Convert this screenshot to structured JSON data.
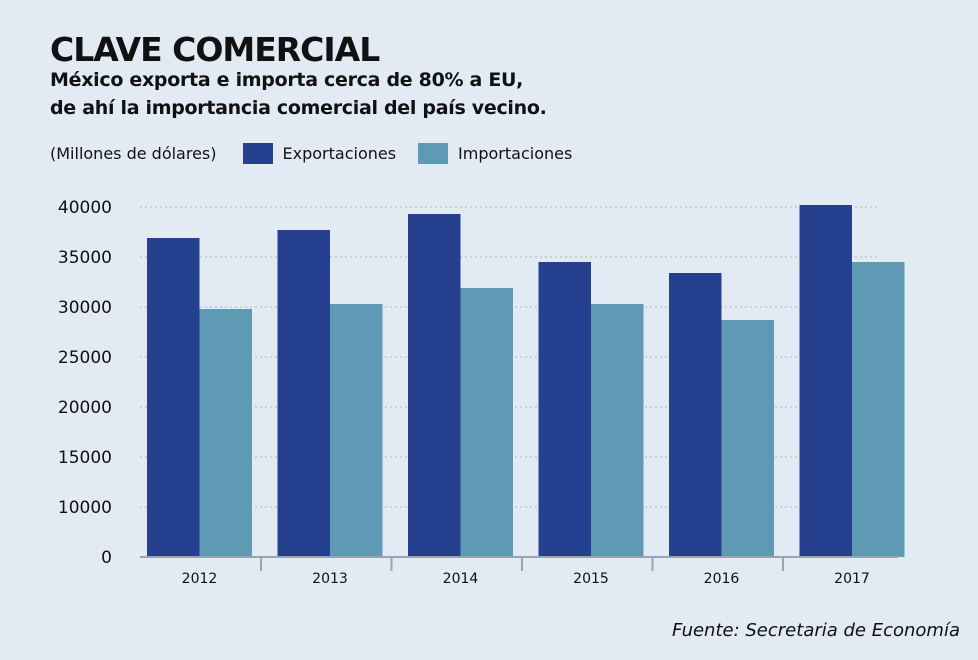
{
  "title": "CLAVE COMERCIAL",
  "subtitle_lines": [
    "México exporta e importa cerca de 80% a EU,",
    "de ahí la importancia comercial del país vecino."
  ],
  "source": "Fuente: Secretaria de Economía",
  "colors": {
    "exports": "#25408f",
    "imports": "#5f9ab5",
    "background": "#e2eaf3"
  },
  "chart_data": {
    "type": "bar",
    "title": "CLAVE COMERCIAL",
    "ylabel": "(Millones de dólares)",
    "xlabel": "",
    "categories": [
      "2012",
      "2013",
      "2014",
      "2015",
      "2016",
      "2017"
    ],
    "series": [
      {
        "name": "Exportaciones",
        "values": [
          36900,
          37700,
          39300,
          34500,
          33400,
          40200
        ]
      },
      {
        "name": "Importaciones",
        "values": [
          29800,
          30300,
          31900,
          30300,
          28700,
          34500
        ]
      }
    ],
    "yticks": [
      "40000",
      "35000",
      "30000",
      "25000",
      "20000",
      "15000",
      "10000",
      "0"
    ],
    "ylim": [
      0,
      40000
    ],
    "grid": true,
    "legend_position": "top-left"
  }
}
